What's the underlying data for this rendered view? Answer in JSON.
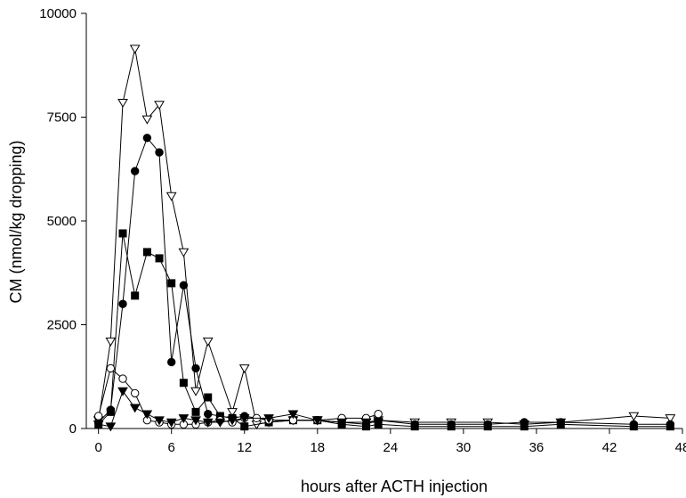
{
  "chart_data": {
    "type": "line",
    "title": "",
    "xlabel": "hours after ACTH injection",
    "ylabel": "CM (nmol/kg dropping)",
    "xlim": [
      -1,
      48
    ],
    "ylim": [
      0,
      10000
    ],
    "xticks": [
      0,
      6,
      12,
      18,
      24,
      30,
      36,
      42,
      48
    ],
    "yticks": [
      0,
      2500,
      5000,
      7500,
      10000
    ],
    "grid": false,
    "legend": "none",
    "series": [
      {
        "marker": "triangle-down-open",
        "x": [
          0,
          1,
          2,
          3,
          4,
          5,
          6,
          7,
          8,
          9,
          11,
          12,
          13,
          14,
          16,
          18,
          20,
          22,
          23,
          26,
          29,
          32,
          35,
          38,
          44,
          47
        ],
        "y": [
          200,
          2100,
          7850,
          9150,
          7450,
          7800,
          5600,
          4250,
          900,
          2100,
          400,
          1450,
          100,
          150,
          200,
          200,
          150,
          150,
          200,
          150,
          150,
          150,
          100,
          150,
          300,
          250
        ]
      },
      {
        "marker": "circle-filled",
        "x": [
          0,
          1,
          2,
          3,
          4,
          5,
          6,
          7,
          8,
          9,
          10,
          11,
          12,
          14,
          16,
          18,
          20,
          22,
          23,
          26,
          29,
          32,
          35,
          38,
          44,
          47
        ],
        "y": [
          150,
          450,
          3000,
          6200,
          7000,
          6650,
          1600,
          3450,
          1450,
          350,
          300,
          250,
          300,
          200,
          200,
          200,
          150,
          100,
          200,
          100,
          100,
          100,
          150,
          150,
          100,
          100
        ]
      },
      {
        "marker": "square-filled",
        "x": [
          0,
          1,
          2,
          3,
          4,
          5,
          6,
          7,
          8,
          9,
          10,
          11,
          12,
          14,
          16,
          18,
          20,
          22,
          23,
          26,
          29,
          32,
          35,
          38,
          44,
          47
        ],
        "y": [
          100,
          400,
          4700,
          3200,
          4250,
          4100,
          3500,
          1100,
          400,
          750,
          300,
          250,
          50,
          150,
          200,
          200,
          100,
          50,
          100,
          50,
          50,
          50,
          50,
          100,
          50,
          50
        ]
      },
      {
        "marker": "circle-open",
        "x": [
          0,
          1,
          2,
          3,
          4,
          5,
          6,
          7,
          8,
          9,
          10,
          11,
          12,
          13,
          14,
          16,
          18,
          20,
          22,
          23
        ],
        "y": [
          300,
          1450,
          1200,
          850,
          200,
          150,
          100,
          100,
          100,
          150,
          200,
          150,
          250,
          250,
          200,
          200,
          200,
          250,
          250,
          350
        ]
      },
      {
        "marker": "triangle-down-filled",
        "x": [
          0,
          1,
          2,
          3,
          4,
          5,
          6,
          7,
          8,
          9,
          10,
          11,
          12,
          14,
          16,
          18,
          20,
          22,
          23
        ],
        "y": [
          100,
          50,
          900,
          500,
          350,
          200,
          150,
          250,
          200,
          150,
          150,
          200,
          250,
          250,
          350,
          200,
          150,
          150,
          150
        ]
      }
    ]
  }
}
